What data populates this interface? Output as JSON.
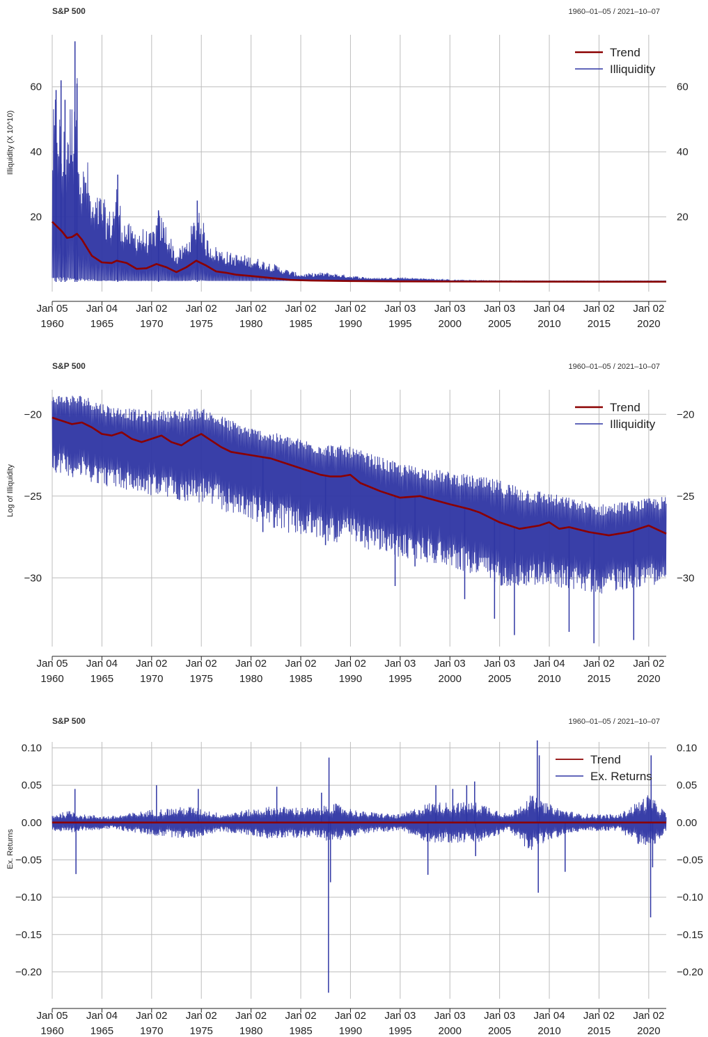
{
  "colors": {
    "trend": "#8b0000",
    "series": "#2e35a3",
    "grid": "#bdbdbd"
  },
  "x_ticks": [
    {
      "top": "Jan 05",
      "bottom": "1960",
      "year": 1960.01
    },
    {
      "top": "Jan 04",
      "bottom": "1965",
      "year": 1965.01
    },
    {
      "top": "Jan 02",
      "bottom": "1970",
      "year": 1970.01
    },
    {
      "top": "Jan 02",
      "bottom": "1975",
      "year": 1975.01
    },
    {
      "top": "Jan 02",
      "bottom": "1980",
      "year": 1980.01
    },
    {
      "top": "Jan 02",
      "bottom": "1985",
      "year": 1985.01
    },
    {
      "top": "Jan 02",
      "bottom": "1990",
      "year": 1990.01
    },
    {
      "top": "Jan 03",
      "bottom": "1995",
      "year": 1995.01
    },
    {
      "top": "Jan 03",
      "bottom": "2000",
      "year": 2000.01
    },
    {
      "top": "Jan 03",
      "bottom": "2005",
      "year": 2005.01
    },
    {
      "top": "Jan 04",
      "bottom": "2010",
      "year": 2010.01
    },
    {
      "top": "Jan 02",
      "bottom": "2015",
      "year": 2015.01
    },
    {
      "top": "Jan 02",
      "bottom": "2020",
      "year": 2020.01
    }
  ],
  "chart_data": [
    {
      "type": "line",
      "title": "S&P 500",
      "date_range": "1960–01–05 / 2021–10–07",
      "ylabel": "Illiquidity (X 10^10)",
      "xlim": [
        1960.01,
        2021.77
      ],
      "ylim": [
        -3,
        76
      ],
      "y_ticks": [
        {
          "v": 20,
          "label": "20"
        },
        {
          "v": 40,
          "label": "40"
        },
        {
          "v": 60,
          "label": "60"
        }
      ],
      "legend": {
        "position": "top-right",
        "entries": [
          "Trend",
          "Illiquidity"
        ]
      },
      "trend": {
        "x": [
          1960.0,
          1961.0,
          1961.5,
          1962.0,
          1962.5,
          1963.0,
          1964.0,
          1965.0,
          1966.0,
          1966.5,
          1967.5,
          1968.5,
          1969.5,
          1970.5,
          1971.5,
          1972.5,
          1973.5,
          1974.5,
          1975.5,
          1976.5,
          1977.5,
          1978.5,
          1980.0,
          1982.0,
          1984.0,
          1986.0,
          1990.0,
          1995.0,
          2000.0,
          2005.0,
          2010.0,
          2015.0,
          2021.77
        ],
        "y": [
          18.5,
          15.5,
          13.5,
          13.8,
          14.8,
          13.0,
          8.0,
          6.0,
          5.8,
          6.5,
          5.8,
          4.0,
          4.2,
          5.5,
          4.5,
          3.0,
          4.5,
          6.5,
          5.0,
          3.2,
          2.8,
          2.2,
          1.8,
          1.2,
          0.6,
          0.4,
          0.25,
          0.15,
          0.1,
          0.08,
          0.06,
          0.05,
          0.05
        ]
      },
      "envelope": {
        "x": [
          1960.0,
          1960.3,
          1960.6,
          1961.0,
          1961.5,
          1962.0,
          1962.3,
          1962.6,
          1963.0,
          1963.5,
          1964.0,
          1965.0,
          1965.5,
          1966.0,
          1966.5,
          1967.0,
          1968.0,
          1969.0,
          1970.0,
          1970.7,
          1971.5,
          1972.5,
          1973.5,
          1974.3,
          1974.8,
          1975.5,
          1976.5,
          1978.0,
          1980.0,
          1982.0,
          1983.5,
          1985.0,
          1987.5,
          1990.0,
          1992.5,
          1995.0,
          2000.0,
          2005.0,
          2010.0,
          2015.0,
          2021.77
        ],
        "y": [
          48,
          59,
          62,
          45,
          55,
          57,
          74,
          61,
          35,
          40,
          25,
          28,
          23,
          22,
          33,
          21,
          17,
          17,
          15,
          22,
          18,
          9,
          13,
          20,
          25,
          14,
          11,
          9,
          8,
          6,
          4,
          2.5,
          3,
          2,
          1.2,
          1.5,
          0.6,
          0.4,
          0.3,
          0.3,
          0.3
        ]
      },
      "spikes": [
        [
          1960.4,
          59
        ],
        [
          1960.9,
          62
        ],
        [
          1961.3,
          56
        ],
        [
          1962.3,
          74
        ],
        [
          1962.5,
          61
        ],
        [
          1966.6,
          33
        ],
        [
          1970.7,
          22
        ],
        [
          1974.6,
          25
        ]
      ]
    },
    {
      "type": "line",
      "title": "S&P 500",
      "date_range": "1960–01–05 / 2021–10–07",
      "ylabel": "Log of Illiquidity",
      "xlim": [
        1960.01,
        2021.77
      ],
      "ylim": [
        -34.2,
        -18.5
      ],
      "y_ticks": [
        {
          "v": -30,
          "label": "−30"
        },
        {
          "v": -25,
          "label": "−25"
        },
        {
          "v": -20,
          "label": "−20"
        }
      ],
      "legend": {
        "position": "top-right",
        "entries": [
          "Trend",
          "Illiquidity"
        ]
      },
      "trend": {
        "x": [
          1960.0,
          1961.0,
          1962.0,
          1963.0,
          1964.0,
          1965.0,
          1966.0,
          1967.0,
          1968.0,
          1969.0,
          1970.0,
          1971.0,
          1972.0,
          1973.0,
          1974.0,
          1975.0,
          1976.0,
          1977.0,
          1978.0,
          1979.0,
          1980.0,
          1982.0,
          1984.0,
          1986.0,
          1987.0,
          1988.0,
          1989.0,
          1990.0,
          1991.0,
          1993.0,
          1995.0,
          1997.0,
          2000.0,
          2002.0,
          2003.0,
          2005.0,
          2007.0,
          2009.0,
          2010.0,
          2011.0,
          2012.0,
          2014.0,
          2016.0,
          2017.0,
          2018.0,
          2020.0,
          2021.77
        ],
        "y": [
          -20.2,
          -20.4,
          -20.6,
          -20.5,
          -20.8,
          -21.2,
          -21.3,
          -21.1,
          -21.5,
          -21.7,
          -21.5,
          -21.3,
          -21.7,
          -21.9,
          -21.5,
          -21.2,
          -21.6,
          -22.0,
          -22.3,
          -22.4,
          -22.5,
          -22.7,
          -23.1,
          -23.5,
          -23.7,
          -23.8,
          -23.8,
          -23.7,
          -24.2,
          -24.7,
          -25.1,
          -25.0,
          -25.5,
          -25.8,
          -26.0,
          -26.6,
          -27.0,
          -26.8,
          -26.6,
          -27.0,
          -26.9,
          -27.2,
          -27.4,
          -27.3,
          -27.2,
          -26.8,
          -27.3
        ]
      },
      "upper_x": [
        1960.0,
        1963.0,
        1966.0,
        1970.0,
        1975.0,
        1980.0,
        1985.0,
        1990.0,
        1995.0,
        2000.0,
        2005.0,
        2010.0,
        2015.0,
        2021.77
      ],
      "upper_y": [
        -18.8,
        -18.8,
        -19.5,
        -19.8,
        -19.6,
        -20.8,
        -21.5,
        -22.0,
        -23.0,
        -23.5,
        -24.0,
        -24.8,
        -25.5,
        -25.0
      ],
      "lower_x": [
        1960.0,
        1963.0,
        1966.0,
        1970.0,
        1975.0,
        1980.0,
        1985.0,
        1990.0,
        1995.0,
        2000.0,
        2005.0,
        2010.0,
        2015.0,
        2021.77
      ],
      "lower_y": [
        -23.5,
        -24.0,
        -24.5,
        -25.0,
        -25.5,
        -26.5,
        -27.5,
        -28.0,
        -28.8,
        -29.3,
        -30.5,
        -30.5,
        -31.0,
        -30.3
      ],
      "spikes": [
        [
          1981.2,
          -27.2
        ],
        [
          1987.5,
          -28.0
        ],
        [
          1994.5,
          -30.5
        ],
        [
          2001.5,
          -31.3
        ],
        [
          2004.5,
          -32.5
        ],
        [
          2006.5,
          -33.5
        ],
        [
          2012.0,
          -33.3
        ],
        [
          2014.5,
          -34.0
        ],
        [
          2018.5,
          -33.8
        ],
        [
          1996.5,
          -29.3
        ]
      ]
    },
    {
      "type": "line",
      "title": "S&P 500",
      "date_range": "1960–01–05 / 2021–10–07",
      "ylabel": "Ex. Returns",
      "xlim": [
        1960.01,
        2021.77
      ],
      "ylim": [
        -0.236,
        0.108
      ],
      "y_ticks": [
        {
          "v": 0.1,
          "label": "0.10"
        },
        {
          "v": 0.05,
          "label": "0.05"
        },
        {
          "v": 0.0,
          "label": "0.00"
        },
        {
          "v": -0.05,
          "label": "−0.05"
        },
        {
          "v": -0.1,
          "label": "−0.10"
        },
        {
          "v": -0.15,
          "label": "−0.15"
        },
        {
          "v": -0.2,
          "label": "−0.20"
        }
      ],
      "legend": {
        "position": "top-right",
        "entries": [
          "Trend",
          "Ex. Returns"
        ]
      },
      "trend": {
        "x": [
          1960.0,
          2021.77
        ],
        "y": [
          0.0,
          0.0
        ]
      },
      "amp_x": [
        1960.0,
        1962.0,
        1963.0,
        1966.0,
        1970.0,
        1974.0,
        1977.0,
        1982.0,
        1987.0,
        1988.0,
        1991.0,
        1995.0,
        1998.0,
        2003.0,
        2006.0,
        2008.0,
        2009.5,
        2011.0,
        2013.0,
        2017.0,
        2020.0,
        2021.77
      ],
      "amp_y": [
        0.01,
        0.015,
        0.01,
        0.008,
        0.016,
        0.02,
        0.011,
        0.02,
        0.018,
        0.025,
        0.014,
        0.01,
        0.025,
        0.025,
        0.01,
        0.035,
        0.025,
        0.018,
        0.011,
        0.01,
        0.035,
        0.012
      ],
      "spikes": [
        [
          1962.4,
          -0.069
        ],
        [
          1962.3,
          0.045
        ],
        [
          1970.5,
          0.05
        ],
        [
          1974.7,
          0.045
        ],
        [
          1982.6,
          0.048
        ],
        [
          1987.1,
          0.04
        ],
        [
          1987.8,
          -0.228
        ],
        [
          1987.85,
          0.087
        ],
        [
          1988.0,
          -0.08
        ],
        [
          1997.8,
          -0.07
        ],
        [
          1998.6,
          0.05
        ],
        [
          2000.3,
          0.045
        ],
        [
          2001.7,
          0.05
        ],
        [
          2002.5,
          0.055
        ],
        [
          2002.6,
          -0.045
        ],
        [
          2008.8,
          0.11
        ],
        [
          2008.9,
          -0.094
        ],
        [
          2009.0,
          0.09
        ],
        [
          2011.6,
          -0.066
        ],
        [
          2020.2,
          -0.127
        ],
        [
          2020.25,
          0.09
        ],
        [
          2020.4,
          -0.06
        ]
      ]
    }
  ]
}
